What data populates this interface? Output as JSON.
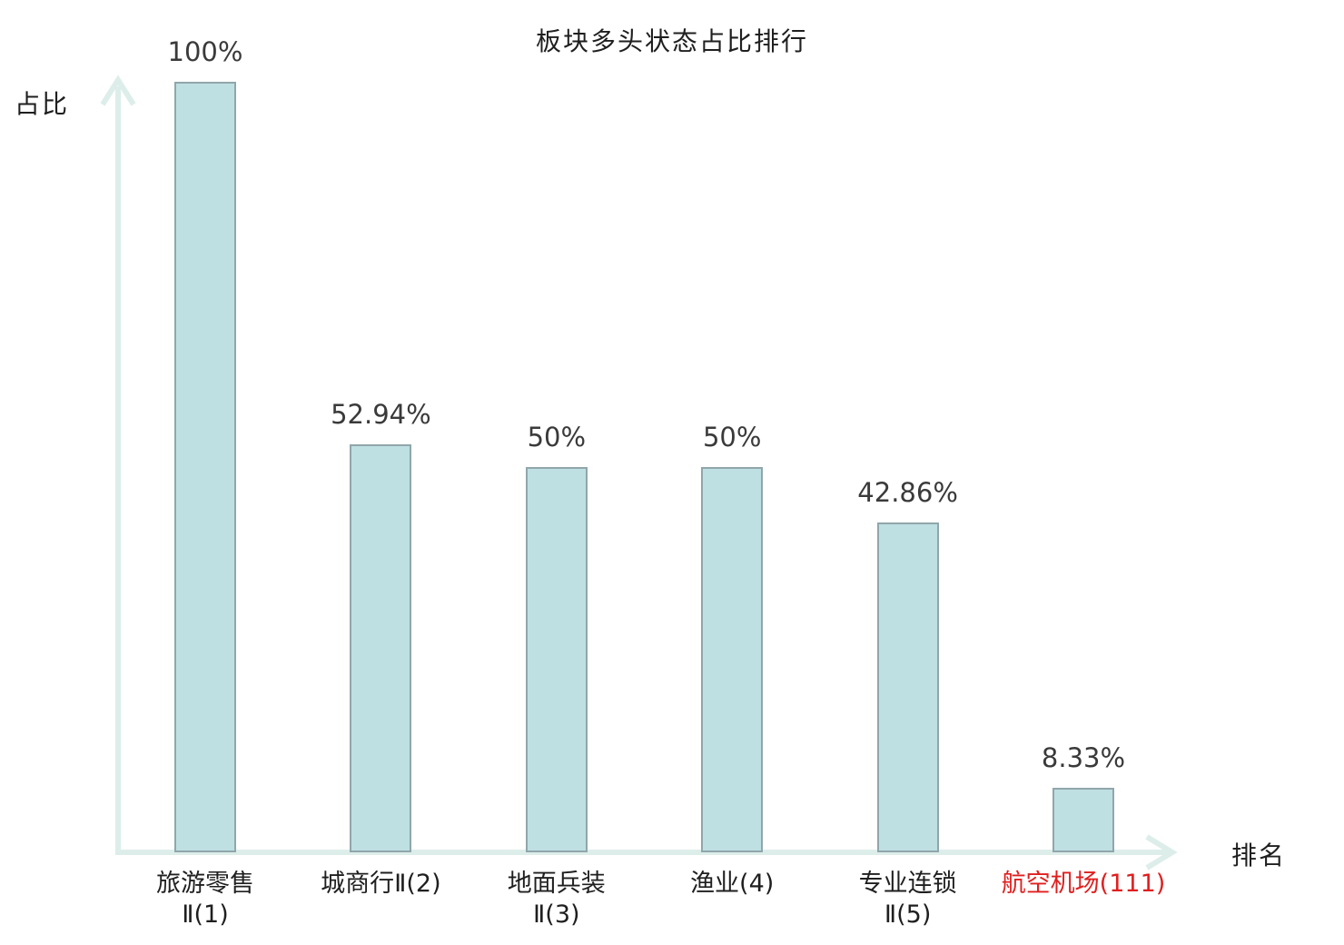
{
  "chart_data": {
    "type": "bar",
    "title": "板块多头状态占比排行",
    "xlabel": "排名",
    "ylabel": "占比",
    "ylim": [
      0,
      100
    ],
    "grid": false,
    "legend": null,
    "categories": [
      "旅游零售Ⅱ(1)",
      "城商行Ⅱ(2)",
      "地面兵装Ⅱ(3)",
      "渔业(4)",
      "专业连锁Ⅱ(5)",
      "航空机场(111)"
    ],
    "category_label_lines": [
      [
        "旅游零售",
        "Ⅱ(1)"
      ],
      [
        "城商行Ⅱ(2)"
      ],
      [
        "地面兵装",
        "Ⅱ(3)"
      ],
      [
        "渔业(4)"
      ],
      [
        "专业连锁",
        "Ⅱ(5)"
      ],
      [
        "航空机场(111)"
      ]
    ],
    "values": [
      100,
      52.94,
      50,
      50,
      42.86,
      8.33
    ],
    "value_labels": [
      "100%",
      "52.94%",
      "50%",
      "50%",
      "42.86%",
      "8.33%"
    ],
    "highlight_index": 5,
    "colors": {
      "bar_fill": "#bfe0e3",
      "bar_border": "#90a6aa",
      "axis": "#ddeeea",
      "text": "#1f1f1f",
      "value_text": "#3a3a3a",
      "highlight_text": "#e01f1f"
    }
  }
}
